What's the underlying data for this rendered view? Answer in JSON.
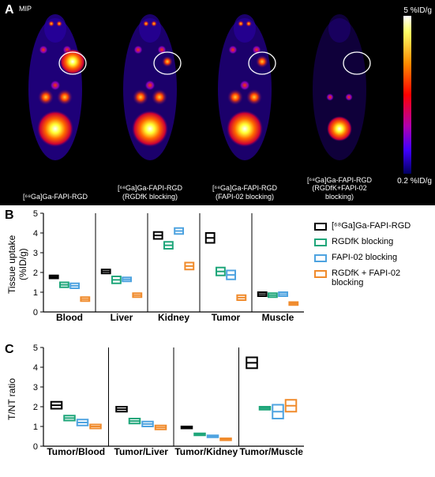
{
  "panelA": {
    "label": "A",
    "mip": "MIP",
    "grad_top": "5 %ID/g",
    "grad_bot": "0.2 %ID/g",
    "background": "#000000",
    "circle_stroke": "#ffffff",
    "mice": [
      {
        "caption_l1": "[⁶⁸Ga]Ga-FAPI-RGD",
        "caption_l2": "",
        "intensity": 1.0,
        "tumor_r": 16,
        "tumor_intensity": 1.0
      },
      {
        "caption_l1": "[⁶⁸Ga]Ga-FAPI-RGD",
        "caption_l2": "(RGDfK blocking)",
        "intensity": 0.85,
        "tumor_r": 7,
        "tumor_intensity": 0.55
      },
      {
        "caption_l1": "[⁶⁸Ga]Ga-FAPI-RGD",
        "caption_l2": "(FAPI-02 blocking)",
        "intensity": 0.85,
        "tumor_r": 8,
        "tumor_intensity": 0.6
      },
      {
        "caption_l1": "[⁶⁸Ga]Ga-FAPI-RGD",
        "caption_l2": "(RGDfK+FAPI-02",
        "caption_l3": "blocking)",
        "intensity": 0.3,
        "tumor_r": 0,
        "tumor_intensity": 0.1
      }
    ]
  },
  "colors": {
    "series": [
      "#000000",
      "#1fa67a",
      "#4ea3e0",
      "#f08b2c"
    ]
  },
  "legend": [
    {
      "label": "[⁶⁸Ga]Ga-FAPI-RGD",
      "color": "#000000"
    },
    {
      "label": "RGDfK blocking",
      "color": "#1fa67a"
    },
    {
      "label": "FAPI-02 blocking",
      "color": "#4ea3e0"
    },
    {
      "label": "RGDfK + FAPI-02 blocking",
      "color": "#f08b2c"
    }
  ],
  "panelB": {
    "label": "B",
    "ylabel": "Tissue uptake (%ID/g)",
    "ylim": [
      0,
      5
    ],
    "ytick_step": 1,
    "label_fontsize": 12,
    "box_stroke_width": 2,
    "categories": [
      "Blood",
      "Liver",
      "Kidney",
      "Tumor",
      "Muscle"
    ],
    "series": [
      {
        "name": "[68Ga]Ga-FAPI-RGD",
        "Blood": [
          1.7,
          1.85
        ],
        "Liver": [
          1.95,
          2.15
        ],
        "Kidney": [
          3.7,
          4.05
        ],
        "Tumor": [
          3.5,
          4.0
        ],
        "Muscle": [
          0.8,
          1.0
        ]
      },
      {
        "name": "RGDfK blocking",
        "Blood": [
          1.25,
          1.5
        ],
        "Liver": [
          1.45,
          1.8
        ],
        "Kidney": [
          3.2,
          3.55
        ],
        "Tumor": [
          1.85,
          2.25
        ],
        "Muscle": [
          0.75,
          0.95
        ]
      },
      {
        "name": "FAPI-02 blocking",
        "Blood": [
          1.2,
          1.45
        ],
        "Liver": [
          1.55,
          1.75
        ],
        "Kidney": [
          3.95,
          4.25
        ],
        "Tumor": [
          1.65,
          2.1
        ],
        "Muscle": [
          0.8,
          1.0
        ]
      },
      {
        "name": "RGDfK+FAPI-02",
        "Blood": [
          0.55,
          0.75
        ],
        "Liver": [
          0.75,
          0.95
        ],
        "Kidney": [
          2.15,
          2.5
        ],
        "Tumor": [
          0.6,
          0.85
        ],
        "Muscle": [
          0.35,
          0.5
        ]
      }
    ]
  },
  "panelC": {
    "label": "C",
    "ylabel": "T/NT ratio",
    "ylim": [
      0,
      5
    ],
    "ytick_step": 1,
    "label_fontsize": 12,
    "box_stroke_width": 2,
    "categories": [
      "Tumor/Blood",
      "Tumor/Liver",
      "Tumor/Kidney",
      "Tumor/Muscle"
    ],
    "series": [
      {
        "name": "[68Ga]Ga-FAPI-RGD",
        "Tumor/Blood": [
          1.9,
          2.25
        ],
        "Tumor/Liver": [
          1.75,
          2.0
        ],
        "Tumor/Kidney": [
          0.9,
          1.0
        ],
        "Tumor/Muscle": [
          3.95,
          4.5
        ]
      },
      {
        "name": "RGDfK blocking",
        "Tumor/Blood": [
          1.3,
          1.55
        ],
        "Tumor/Liver": [
          1.15,
          1.4
        ],
        "Tumor/Kidney": [
          0.55,
          0.65
        ],
        "Tumor/Muscle": [
          1.85,
          2.0
        ]
      },
      {
        "name": "FAPI-02 blocking",
        "Tumor/Blood": [
          1.05,
          1.35
        ],
        "Tumor/Liver": [
          1.0,
          1.25
        ],
        "Tumor/Kidney": [
          0.45,
          0.55
        ],
        "Tumor/Muscle": [
          1.4,
          2.1
        ]
      },
      {
        "name": "RGDfK+FAPI-02",
        "Tumor/Blood": [
          0.9,
          1.1
        ],
        "Tumor/Liver": [
          0.85,
          1.05
        ],
        "Tumor/Kidney": [
          0.3,
          0.4
        ],
        "Tumor/Muscle": [
          1.75,
          2.35
        ]
      }
    ]
  }
}
